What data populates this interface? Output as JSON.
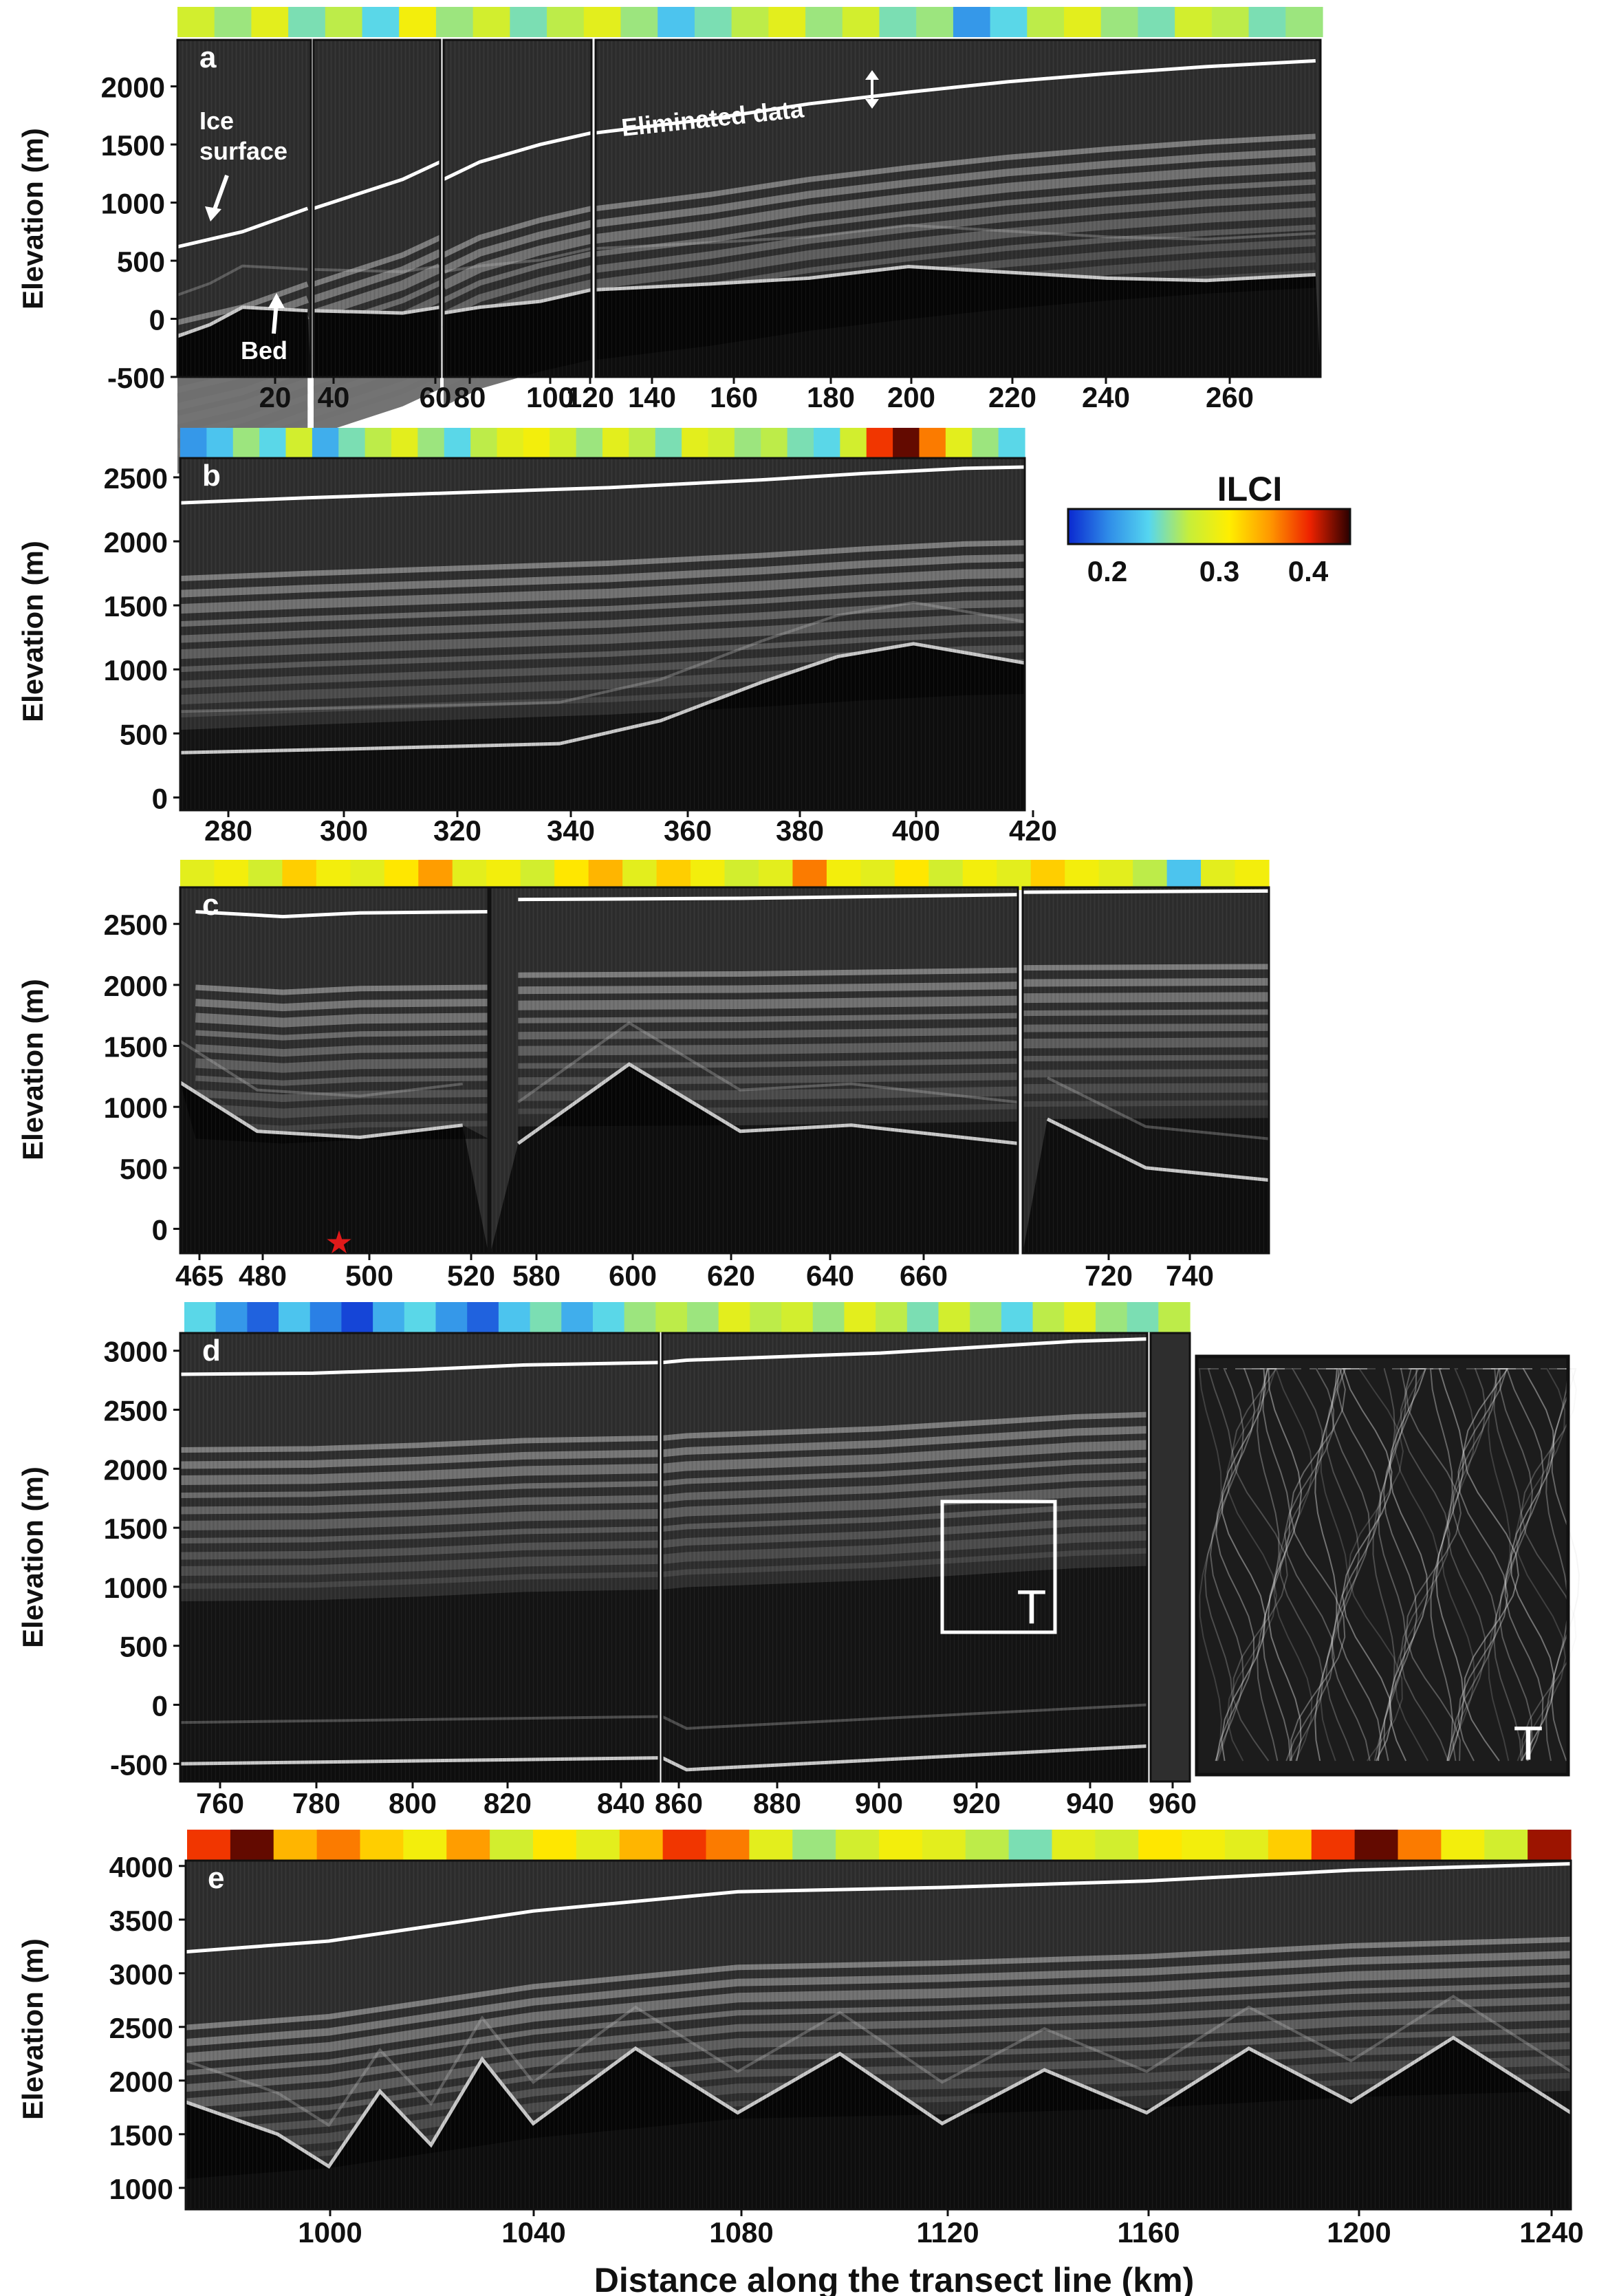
{
  "figure": {
    "xlabel": "Distance along the transect line (km)",
    "colorbar": {
      "label": "ILCI",
      "ticks": [
        "0.2",
        "0.3",
        "0.4"
      ],
      "colors": [
        "#0a28d0",
        "#2f8ce8",
        "#55d6f0",
        "#c6ee3a",
        "#ffee00",
        "#ff9900",
        "#ee2200",
        "#2a0000"
      ]
    },
    "colors": {
      "ice_surface": "#ffffff",
      "background": "#2e2e2e",
      "bed_echo": "#c8c8c8"
    }
  },
  "annotations": {
    "ice_surface": "Ice\nsurface",
    "bed": "Bed",
    "eliminated": "Eliminated data",
    "box_label": "T",
    "inset_label": "T",
    "star": "★"
  },
  "chart_data": [
    {
      "type": "area",
      "panel": "a",
      "ylabel": "Elevation (m)",
      "ylim": [
        -500,
        2400
      ],
      "yticks": [
        -500,
        0,
        500,
        1000,
        1500,
        2000
      ],
      "xticks": [
        "20",
        "40",
        "60",
        "80",
        "100",
        "120",
        "140",
        "160",
        "180",
        "200",
        "220",
        "240",
        "260"
      ],
      "segments": [
        [
          0,
          41
        ],
        [
          41,
          68
        ],
        [
          68,
          117
        ],
        [
          117,
          263
        ]
      ],
      "ice_surface": [
        [
          0,
          620
        ],
        [
          20,
          750
        ],
        [
          40,
          950
        ],
        [
          60,
          1200
        ],
        [
          80,
          1350
        ],
        [
          100,
          1500
        ],
        [
          117,
          1600
        ],
        [
          140,
          1720
        ],
        [
          160,
          1850
        ],
        [
          180,
          1950
        ],
        [
          200,
          2040
        ],
        [
          220,
          2110
        ],
        [
          240,
          2170
        ],
        [
          262,
          2220
        ]
      ],
      "bed": [
        [
          0,
          -150
        ],
        [
          10,
          -50
        ],
        [
          20,
          100
        ],
        [
          40,
          70
        ],
        [
          60,
          50
        ],
        [
          80,
          100
        ],
        [
          100,
          150
        ],
        [
          117,
          250
        ],
        [
          140,
          300
        ],
        [
          160,
          350
        ],
        [
          180,
          450
        ],
        [
          200,
          400
        ],
        [
          220,
          350
        ],
        [
          240,
          330
        ],
        [
          262,
          380
        ]
      ],
      "ilci": [
        0.29,
        0.27,
        0.3,
        0.26,
        0.28,
        0.25,
        0.31,
        0.27,
        0.29,
        0.26,
        0.28,
        0.3,
        0.27,
        0.24,
        0.26,
        0.28,
        0.3,
        0.27,
        0.29,
        0.26,
        0.27,
        0.22,
        0.25,
        0.28,
        0.3,
        0.27,
        0.26,
        0.29,
        0.28,
        0.26,
        0.27
      ]
    },
    {
      "type": "area",
      "panel": "b",
      "ylabel": "Elevation (m)",
      "ylim": [
        -100,
        2650
      ],
      "yticks": [
        0,
        500,
        1000,
        1500,
        2000,
        2500
      ],
      "xticks": [
        "280",
        "300",
        "320",
        "340",
        "360",
        "380",
        "400",
        "420"
      ],
      "segments": [
        [
          265,
          432
        ]
      ],
      "ice_surface": [
        [
          265,
          2300
        ],
        [
          290,
          2340
        ],
        [
          320,
          2380
        ],
        [
          350,
          2420
        ],
        [
          380,
          2480
        ],
        [
          400,
          2530
        ],
        [
          420,
          2570
        ],
        [
          432,
          2580
        ]
      ],
      "bed": [
        [
          265,
          350
        ],
        [
          300,
          380
        ],
        [
          340,
          420
        ],
        [
          360,
          600
        ],
        [
          380,
          900
        ],
        [
          395,
          1100
        ],
        [
          410,
          1200
        ],
        [
          432,
          1050
        ]
      ],
      "ilci": [
        0.22,
        0.24,
        0.27,
        0.25,
        0.29,
        0.23,
        0.26,
        0.28,
        0.3,
        0.27,
        0.25,
        0.28,
        0.3,
        0.31,
        0.29,
        0.27,
        0.3,
        0.28,
        0.26,
        0.3,
        0.29,
        0.27,
        0.28,
        0.26,
        0.25,
        0.29,
        0.38,
        0.41,
        0.36,
        0.3,
        0.27,
        0.25
      ]
    },
    {
      "type": "area",
      "panel": "c",
      "ylabel": "Elevation (m)",
      "ylim": [
        -200,
        2800
      ],
      "yticks": [
        0,
        500,
        1000,
        1500,
        2000,
        2500
      ],
      "xticks": [
        "465",
        "480",
        "500",
        "520",
        "580",
        "600",
        "620",
        "640",
        "660",
        "720",
        "740"
      ],
      "segments": [
        [
          465,
          525
        ],
        [
          575,
          670
        ],
        [
          705,
          755
        ]
      ],
      "ice_surface": [
        [
          468,
          2600
        ],
        [
          485,
          2560
        ],
        [
          500,
          2590
        ],
        [
          525,
          2600
        ],
        [
          580,
          2700
        ],
        [
          620,
          2710
        ],
        [
          670,
          2740
        ],
        [
          705,
          2760
        ],
        [
          755,
          2770
        ]
      ],
      "bed": [
        [
          465,
          1200
        ],
        [
          480,
          800
        ],
        [
          500,
          750
        ],
        [
          520,
          850
        ],
        [
          580,
          700
        ],
        [
          600,
          1350
        ],
        [
          620,
          800
        ],
        [
          640,
          850
        ],
        [
          670,
          700
        ],
        [
          710,
          900
        ],
        [
          730,
          500
        ],
        [
          755,
          400
        ]
      ],
      "ilci": [
        0.3,
        0.31,
        0.29,
        0.33,
        0.31,
        0.3,
        0.32,
        0.35,
        0.3,
        0.31,
        0.29,
        0.32,
        0.34,
        0.3,
        0.33,
        0.31,
        0.29,
        0.3,
        0.36,
        0.31,
        0.3,
        0.32,
        0.29,
        0.31,
        0.3,
        0.33,
        0.31,
        0.3,
        0.28,
        0.24,
        0.3,
        0.31
      ]
    },
    {
      "type": "area",
      "panel": "d",
      "ylabel": "Elevation (m)",
      "ylim": [
        -650,
        3150
      ],
      "yticks": [
        -500,
        0,
        500,
        1000,
        1500,
        2000,
        2500,
        3000
      ],
      "xticks": [
        "760",
        "780",
        "800",
        "820",
        "840",
        "860",
        "880",
        "900",
        "920",
        "940",
        "960"
      ],
      "segments": [
        [
          755,
          845
        ],
        [
          855,
          955
        ],
        [
          955,
          965
        ]
      ],
      "ice_surface": [
        [
          755,
          2800
        ],
        [
          780,
          2810
        ],
        [
          800,
          2840
        ],
        [
          820,
          2880
        ],
        [
          845,
          2900
        ],
        [
          860,
          2920
        ],
        [
          900,
          2980
        ],
        [
          940,
          3080
        ],
        [
          965,
          3100
        ]
      ],
      "bed": [
        [
          755,
          -500
        ],
        [
          845,
          -450
        ],
        [
          860,
          -550
        ],
        [
          955,
          -350
        ]
      ],
      "ilci": [
        0.25,
        0.22,
        0.2,
        0.24,
        0.21,
        0.19,
        0.23,
        0.25,
        0.22,
        0.2,
        0.24,
        0.26,
        0.23,
        0.25,
        0.27,
        0.28,
        0.27,
        0.3,
        0.28,
        0.29,
        0.27,
        0.3,
        0.28,
        0.26,
        0.29,
        0.27,
        0.25,
        0.28,
        0.3,
        0.27,
        0.26,
        0.28
      ]
    },
    {
      "type": "area",
      "panel": "e",
      "ylabel": "Elevation (m)",
      "xlabel": "Distance along the transect line (km)",
      "ylim": [
        800,
        4050
      ],
      "yticks": [
        1000,
        1500,
        2000,
        2500,
        3000,
        3500,
        4000
      ],
      "xticks": [
        "1000",
        "1040",
        "1080",
        "1120",
        "1160",
        "1200",
        "1240"
      ],
      "segments": [
        [
          972,
          1243
        ]
      ],
      "ice_surface": [
        [
          972,
          3200
        ],
        [
          1000,
          3300
        ],
        [
          1040,
          3580
        ],
        [
          1080,
          3760
        ],
        [
          1120,
          3800
        ],
        [
          1160,
          3860
        ],
        [
          1200,
          3960
        ],
        [
          1243,
          4020
        ]
      ],
      "bed": [
        [
          972,
          1800
        ],
        [
          990,
          1500
        ],
        [
          1000,
          1200
        ],
        [
          1010,
          1900
        ],
        [
          1020,
          1400
        ],
        [
          1030,
          2200
        ],
        [
          1040,
          1600
        ],
        [
          1060,
          2300
        ],
        [
          1080,
          1700
        ],
        [
          1100,
          2250
        ],
        [
          1120,
          1600
        ],
        [
          1140,
          2100
        ],
        [
          1160,
          1700
        ],
        [
          1180,
          2300
        ],
        [
          1200,
          1800
        ],
        [
          1220,
          2400
        ],
        [
          1243,
          1700
        ]
      ],
      "ilci": [
        0.38,
        0.41,
        0.34,
        0.36,
        0.33,
        0.31,
        0.35,
        0.29,
        0.32,
        0.3,
        0.34,
        0.38,
        0.36,
        0.3,
        0.27,
        0.29,
        0.31,
        0.3,
        0.28,
        0.26,
        0.3,
        0.29,
        0.32,
        0.31,
        0.3,
        0.33,
        0.38,
        0.41,
        0.36,
        0.31,
        0.29,
        0.4
      ]
    }
  ]
}
